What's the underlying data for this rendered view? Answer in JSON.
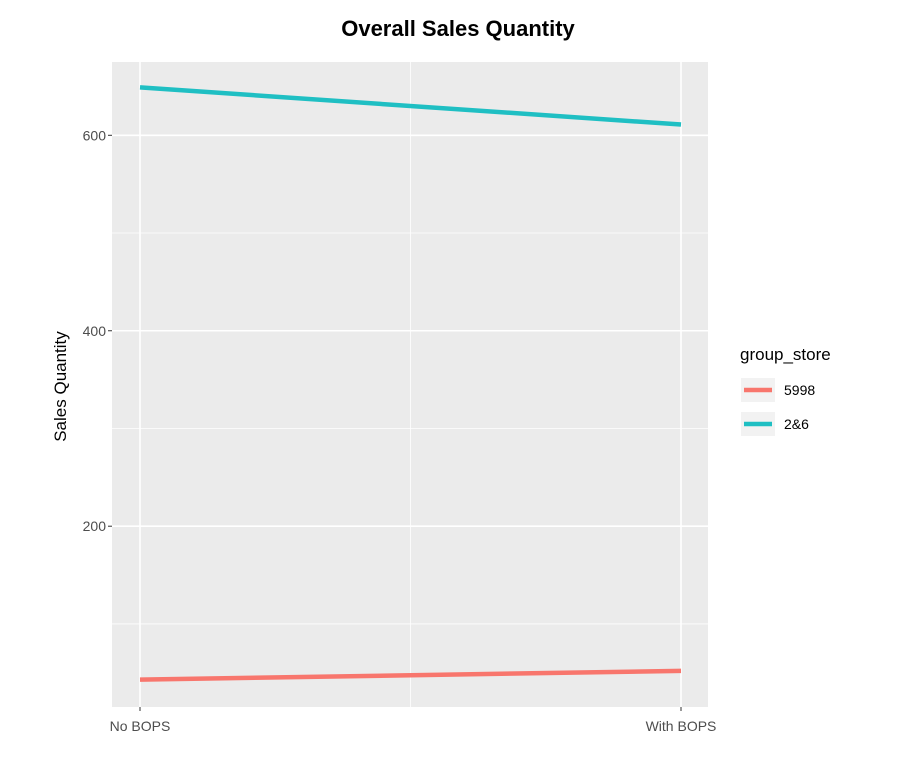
{
  "chart_data": {
    "type": "line",
    "title": "Overall Sales Quantity",
    "xlabel": "",
    "ylabel": "Sales Quantity",
    "categories": [
      "No BOPS",
      "With BOPS"
    ],
    "ylim": [
      15,
      675
    ],
    "yticks": [
      200,
      400,
      600
    ],
    "grid": true,
    "legend_title": "group_store",
    "legend_position": "right",
    "series": [
      {
        "name": "5998",
        "values": [
          43,
          52
        ],
        "color": "#F8766D"
      },
      {
        "name": "2&6",
        "values": [
          649,
          611
        ],
        "color": "#1FBFC3"
      }
    ],
    "panel_background": "#EBEBEB"
  }
}
